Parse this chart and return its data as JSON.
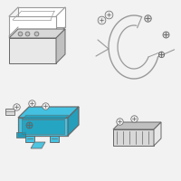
{
  "bg_color": "#f2f2f2",
  "highlight_color": "#3bbfdf",
  "highlight_dark": "#1a9ab8",
  "line_color": "#999999",
  "dark_line": "#666666",
  "white_fill": "#ffffff",
  "light_fill": "#e8e8e8",
  "mid_fill": "#d8d8d8",
  "dark_fill": "#c0c0c0"
}
